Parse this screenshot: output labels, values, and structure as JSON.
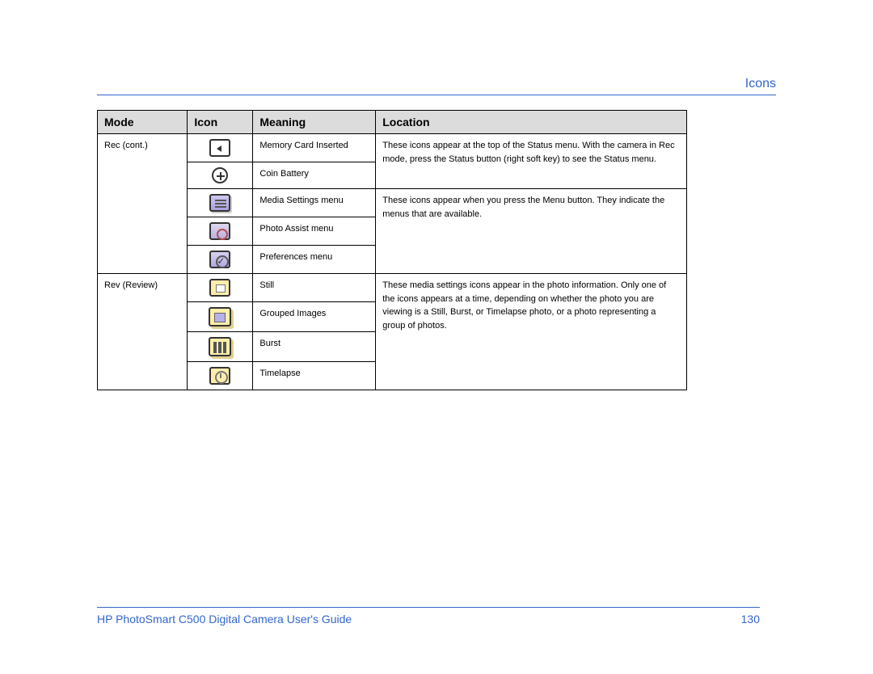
{
  "section_title": "Icons",
  "headers": {
    "mode": "Mode",
    "icon": "Icon",
    "meaning": "Meaning",
    "location": "Location"
  },
  "group1": {
    "mode": "Rec (cont.)",
    "location": "These icons appear at the top of the Status menu. With the camera in Rec mode, press the Status button (right soft key) to see the Status menu.",
    "rows": [
      {
        "meaning": "Memory Card Inserted"
      },
      {
        "meaning": "Coin Battery"
      }
    ]
  },
  "group2": {
    "location": "These icons appear when you press the Menu button. They indicate the menus that are available.",
    "rows": [
      {
        "meaning": "Media Settings menu"
      },
      {
        "meaning": "Photo Assist menu"
      },
      {
        "meaning": "Preferences menu"
      }
    ]
  },
  "group3": {
    "mode": "Rev (Review)",
    "location": "These media settings icons appear in the photo information. Only one of the icons appears at a time, depending on whether the photo you are viewing is a Still, Burst, or Timelapse photo, or a photo representing a group of photos.",
    "rows": [
      {
        "meaning": "Still"
      },
      {
        "meaning": "Grouped Images"
      },
      {
        "meaning": "Burst"
      },
      {
        "meaning": "Timelapse"
      }
    ]
  },
  "footer": {
    "title": "HP PhotoSmart C500 Digital Camera User's Guide",
    "page": "130"
  },
  "colors": {
    "accent": "#3366cc",
    "header_bg": "#dcdcdc",
    "border": "#000000"
  }
}
